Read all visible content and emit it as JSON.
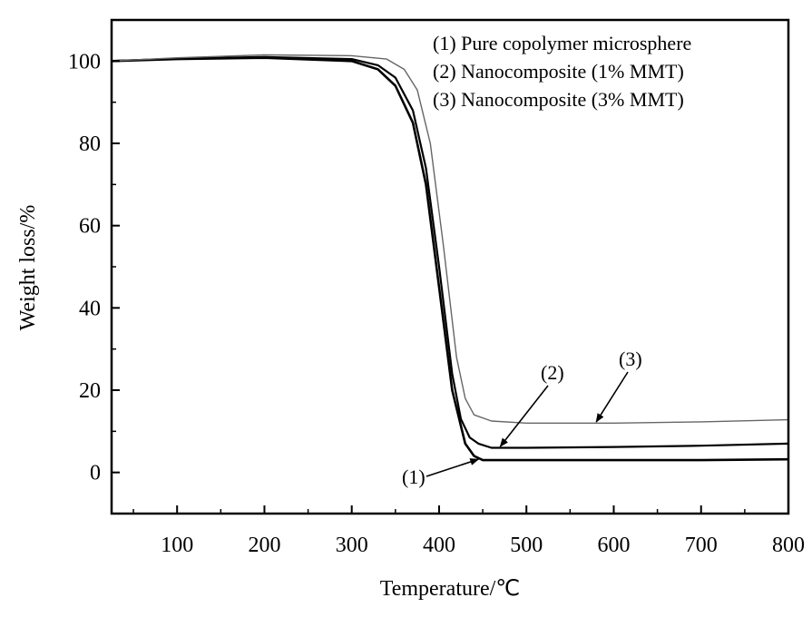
{
  "chart_data": {
    "type": "line",
    "xlabel": "Temperature/℃",
    "ylabel": "Weight loss/%",
    "xlim": [
      25,
      800
    ],
    "ylim": [
      -10,
      110
    ],
    "xticks": [
      100,
      200,
      300,
      400,
      500,
      600,
      700,
      800
    ],
    "yticks": [
      0,
      20,
      40,
      60,
      80,
      100
    ],
    "grid": false,
    "legend_position": "top-right",
    "legend": [
      "(1) Pure copolymer microsphere",
      "(2) Nanocomposite (1% MMT)",
      "(3) Nanocomposite (3% MMT)"
    ],
    "series": [
      {
        "name": "(1)",
        "color": "#000000",
        "x": [
          25,
          100,
          200,
          300,
          330,
          350,
          370,
          385,
          400,
          415,
          430,
          440,
          450,
          500,
          600,
          700,
          800
        ],
        "y": [
          100,
          100.5,
          100.8,
          100,
          98,
          94,
          85,
          70,
          45,
          20,
          7,
          4,
          3,
          3,
          3,
          3,
          3.2
        ]
      },
      {
        "name": "(2)",
        "color": "#000000",
        "x": [
          25,
          100,
          200,
          300,
          330,
          350,
          370,
          385,
          400,
          415,
          425,
          435,
          445,
          460,
          500,
          600,
          700,
          800
        ],
        "y": [
          100,
          100.6,
          101,
          100.5,
          99,
          96,
          88,
          74,
          50,
          24,
          13,
          8.5,
          7,
          6,
          6,
          6.2,
          6.5,
          7
        ]
      },
      {
        "name": "(3)",
        "color": "#666666",
        "x": [
          25,
          100,
          200,
          300,
          340,
          360,
          375,
          390,
          405,
          420,
          430,
          440,
          460,
          500,
          600,
          700,
          800
        ],
        "y": [
          100,
          100.8,
          101.5,
          101.3,
          100.5,
          98,
          93,
          80,
          55,
          28,
          18,
          14,
          12.5,
          12,
          12,
          12.3,
          12.8
        ]
      }
    ],
    "annotations": [
      {
        "text": "(1)",
        "series": "(1)"
      },
      {
        "text": "(2)",
        "series": "(2)"
      },
      {
        "text": "(3)",
        "series": "(3)"
      }
    ]
  }
}
